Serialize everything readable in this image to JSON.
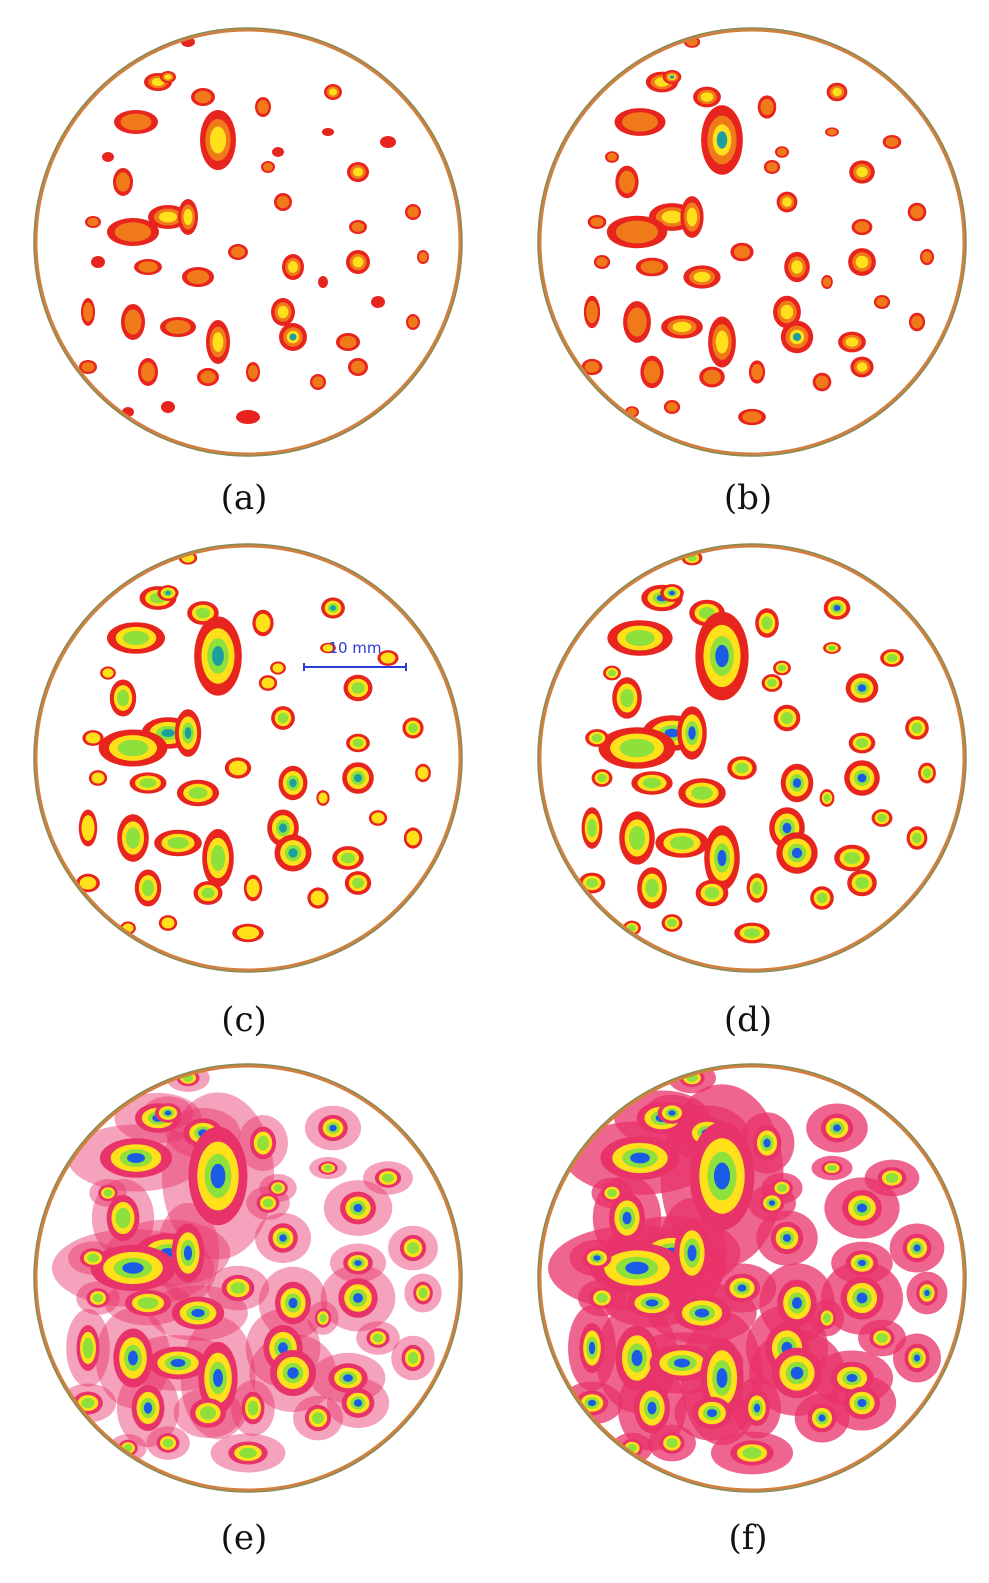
{
  "figure": {
    "panels": [
      {
        "id": "a",
        "label": "(a)",
        "level": 1
      },
      {
        "id": "b",
        "label": "(b)",
        "level": 2
      },
      {
        "id": "c",
        "label": "(c)",
        "level": 3
      },
      {
        "id": "d",
        "label": "(d)",
        "level": 4
      },
      {
        "id": "e",
        "label": "(e)",
        "level": 5
      },
      {
        "id": "f",
        "label": "(f)",
        "level": 6
      }
    ],
    "scalebar": {
      "label": "10 mm",
      "panel": "c"
    },
    "colors": {
      "rim": "#8a8a55",
      "rim_inner": "#d08040",
      "red": "#e8241e",
      "pink": "#e8336a",
      "orange": "#f07a1a",
      "yellow": "#ffe01a",
      "green": "#8ee03a",
      "teal": "#1aa0a0",
      "blue": "#1a5ce8",
      "scalebar": "#2a3cd8"
    }
  }
}
